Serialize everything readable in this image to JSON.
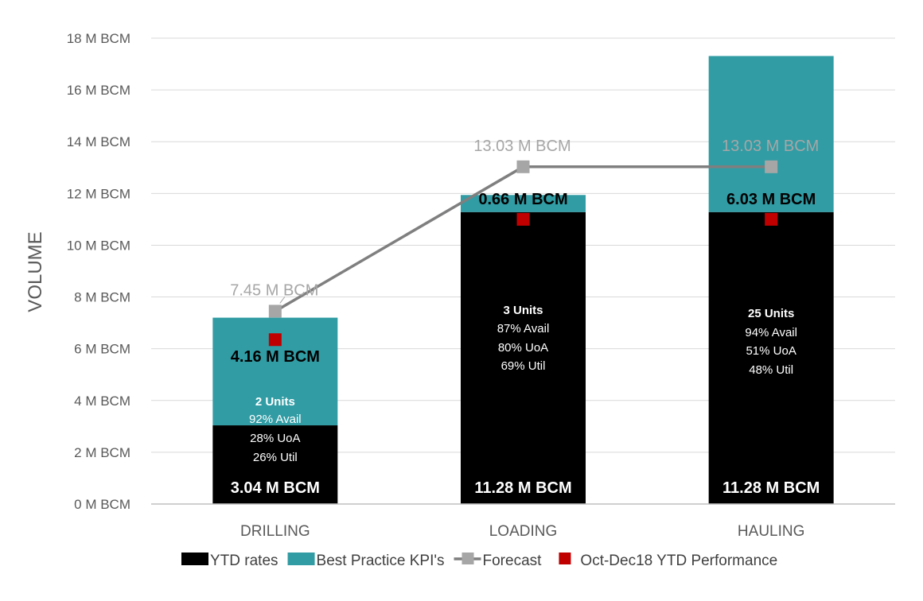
{
  "chart_data": {
    "type": "bar",
    "stacked": true,
    "title": "",
    "xlabel": "",
    "ylabel": "VOLUME",
    "ylim": [
      0,
      18
    ],
    "ytick_labels": [
      "0 M BCM",
      "2 M BCM",
      "4 M BCM",
      "6 M BCM",
      "8 M BCM",
      "10 M BCM",
      "12 M BCM",
      "14 M BCM",
      "16 M BCM",
      "18 M BCM"
    ],
    "categories": [
      "DRILLING",
      "LOADING",
      "HAULING"
    ],
    "grid": true,
    "legend_position": "bottom",
    "series": [
      {
        "name": "YTD rates",
        "kind": "bar",
        "color": "#000000",
        "values": [
          3.04,
          11.28,
          11.28
        ],
        "labels": [
          "3.04 M BCM",
          "11.28 M BCM",
          "11.28 M BCM"
        ]
      },
      {
        "name": "Best Practice KPI's",
        "kind": "bar",
        "color": "#319ca4",
        "values": [
          4.16,
          0.66,
          6.03
        ],
        "labels": [
          "4.16 M BCM",
          "0.66 M BCM",
          "6.03 M BCM"
        ]
      },
      {
        "name": "Forecast",
        "kind": "line",
        "color": "#7f7f7f",
        "marker_color": "#a6a6a6",
        "values": [
          7.45,
          13.03,
          13.03
        ],
        "labels": [
          "7.45 M BCM",
          "13.03 M BCM",
          "13.03 M BCM"
        ]
      },
      {
        "name": "Oct-Dec18 YTD Performance",
        "kind": "marker",
        "color": "#c00000",
        "values": [
          6.35,
          11.0,
          11.0
        ]
      }
    ],
    "annotations": [
      {
        "category": "DRILLING",
        "lines": [
          "2 Units",
          "92% Avail",
          "28% UoA",
          "26% Util"
        ]
      },
      {
        "category": "LOADING",
        "lines": [
          "3 Units",
          "87% Avail",
          "80% UoA",
          "69% Util"
        ]
      },
      {
        "category": "HAULING",
        "lines": [
          "25 Units",
          "94% Avail",
          "51% UoA",
          "48% Util"
        ]
      }
    ]
  }
}
